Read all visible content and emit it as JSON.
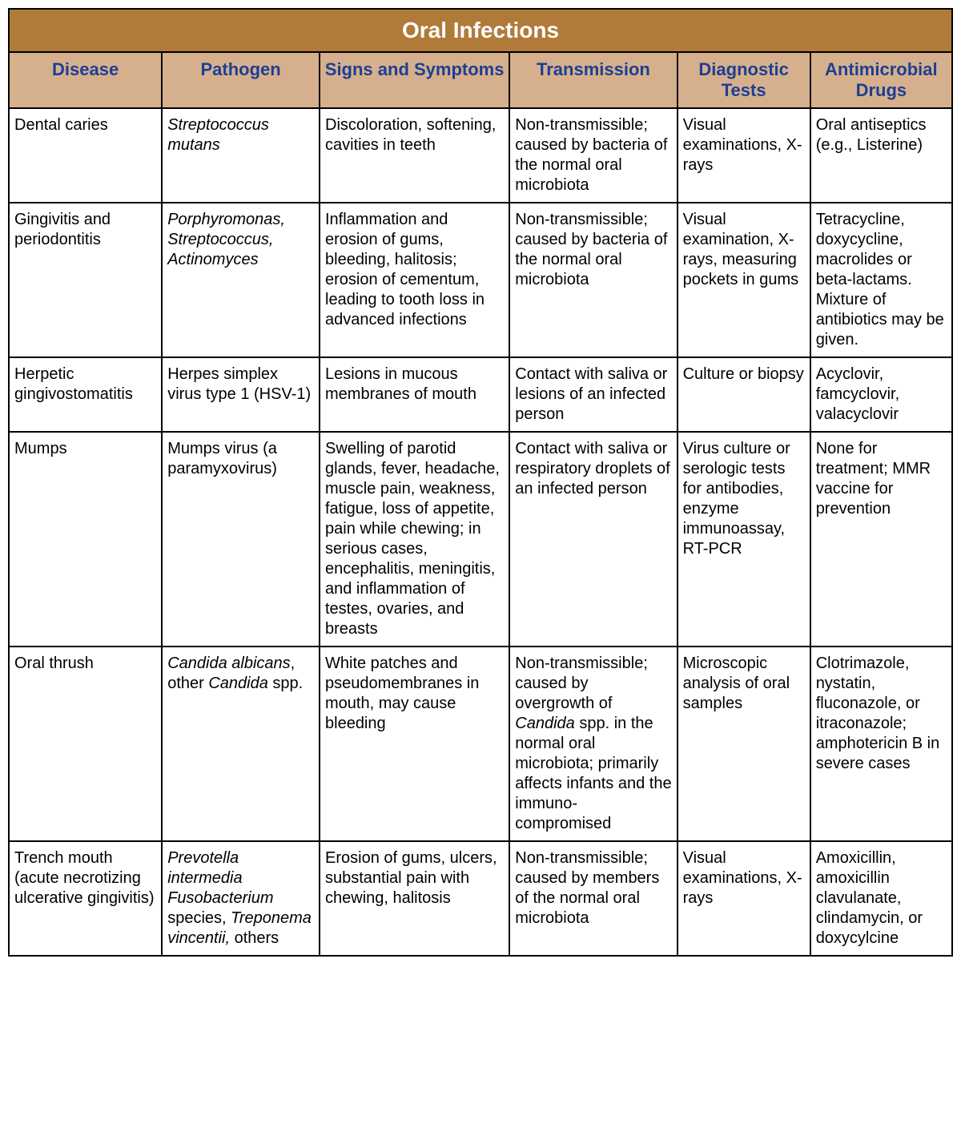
{
  "table": {
    "type": "table",
    "title": "Oral Infections",
    "title_bg": "#b07a39",
    "title_color": "#ffffff",
    "title_fontsize": 28,
    "header_bg": "#d6b08c",
    "header_color": "#1c3f94",
    "header_fontsize": 22,
    "cell_fontsize": 20,
    "border_color": "#000000",
    "background_color": "#ffffff",
    "columns": [
      {
        "label": "Disease",
        "width_pct": 13.7
      },
      {
        "label": "Pathogen",
        "width_pct": 14.1
      },
      {
        "label": "Signs and Symptoms",
        "width_pct": 17.0
      },
      {
        "label": "Transmission",
        "width_pct": 15.0
      },
      {
        "label": "Diagnostic Tests",
        "width_pct": 11.9
      },
      {
        "label": "Antimicrobial Drugs",
        "width_pct": 12.7
      }
    ],
    "rows": [
      {
        "disease": "Dental caries",
        "pathogen_italic": "Streptococcus mutans",
        "pathogen_plain": "",
        "symptoms": "Discoloration, softening, cavities in teeth",
        "transmission": "Non-transmissible; caused by bacteria of the normal oral microbiota",
        "diagnostic": "Visual examinations, X-rays",
        "drugs": "Oral antiseptics (e.g., Listerine)"
      },
      {
        "disease": "Gingivitis and periodontitis",
        "pathogen_italic": "Porphyromonas, Streptococcus, Actinomyces",
        "pathogen_plain": "",
        "symptoms": "Inflammation and erosion of gums, bleeding, halitosis; erosion of cementum, leading to tooth loss in advanced infections",
        "transmission": "Non-transmissible; caused by bacteria of the normal oral microbiota",
        "diagnostic": "Visual examination, X-rays, measuring pockets in gums",
        "drugs": "Tetracycline, doxycycline, macrolides or beta-lactams. Mixture of antibiotics may be given."
      },
      {
        "disease": "Herpetic gingivostomatitis",
        "pathogen_italic": "",
        "pathogen_plain": "Herpes simplex virus type 1 (HSV-1)",
        "symptoms": "Lesions in mucous membranes of mouth",
        "transmission": "Contact with saliva or lesions of an infected person",
        "diagnostic": "Culture or biopsy",
        "drugs": "Acyclovir, famcyclovir, valacyclovir"
      },
      {
        "disease": "Mumps",
        "pathogen_italic": "",
        "pathogen_plain": "Mumps virus (a paramyxovirus)",
        "symptoms": "Swelling of parotid glands, fever, headache, muscle pain, weakness, fatigue, loss of appetite, pain while chewing; in serious cases, encephalitis, meningitis, and inflammation of testes, ovaries, and breasts",
        "transmission": "Contact with saliva or respiratory droplets of an infected person",
        "diagnostic": "Virus culture or serologic tests for antibodies, enzyme immunoassay, RT-PCR",
        "drugs": "None for treatment; MMR vaccine for prevention"
      },
      {
        "disease": "Oral thrush",
        "pathogen_pre_italic": "Candida albicans",
        "pathogen_mid_plain": ", other ",
        "pathogen_post_italic": "Candida",
        "pathogen_tail_plain": " spp.",
        "symptoms": "White patches and pseudomembranes in mouth, may cause bleeding",
        "transmission_pre": "Non-transmissible; caused by overgrowth of ",
        "transmission_italic": "Candida",
        "transmission_post": " spp. in the normal oral microbiota; primarily affects infants and the immuno-compromised",
        "diagnostic": "Microscopic analysis of oral samples",
        "drugs": "Clotrimazole, nystatin, fluconazole, or itraconazole; amphotericin B in severe cases"
      },
      {
        "disease": "Trench mouth (acute necrotizing ulcerative gingivitis)",
        "pathogen_pre_italic": "Prevotella intermedia Fusobacterium",
        "pathogen_mid_plain": " species, ",
        "pathogen_post_italic": "Treponema vincentii,",
        "pathogen_tail_plain": " others",
        "symptoms": "Erosion of gums, ulcers, substantial pain with chewing, halitosis",
        "transmission": "Non-transmissible; caused by members of the normal oral microbiota",
        "diagnostic": "Visual examinations, X-rays",
        "drugs": "Amoxicillin, amoxicillin clavulanate, clindamycin, or doxycylcine"
      }
    ]
  }
}
